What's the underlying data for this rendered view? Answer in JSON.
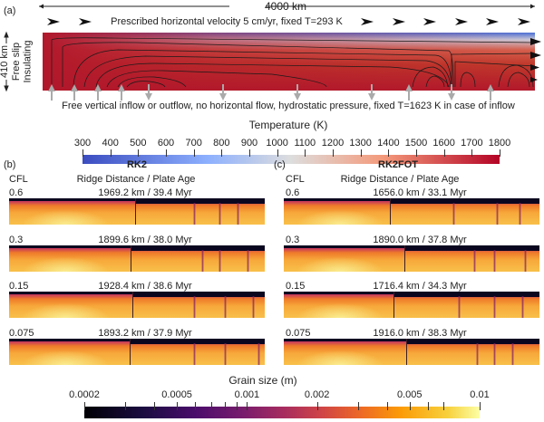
{
  "panel_a": {
    "label": "(a)",
    "width_label": "4000 km",
    "depth_label": "410 km",
    "side_labels": [
      "Free slip",
      "Insulating"
    ],
    "top_bc": "Prescribed horizontal velocity 5 cm/yr, fixed T=293 K",
    "bottom_bc": "Free vertical inflow or outflow, no horizontal flow, hydrostatic pressure, fixed T=1623 K in case of inflow"
  },
  "temperature_colorbar": {
    "title": "Temperature (K)",
    "ticks": [
      "300",
      "400",
      "500",
      "600",
      "700",
      "800",
      "900",
      "1000",
      "1100",
      "1200",
      "1300",
      "1400",
      "1500",
      "1600",
      "1700",
      "1800"
    ],
    "colors": [
      "#3b4cc0",
      "#dddddd",
      "#b40426"
    ]
  },
  "panel_b": {
    "label": "(b)",
    "title": "RK2",
    "col1": "CFL",
    "col2": "Ridge Distance / Plate Age",
    "rows": [
      {
        "cfl": "0.6",
        "value": "1969.2 km / 39.4 Myr",
        "ridge_km": 1969.2
      },
      {
        "cfl": "0.3",
        "value": "1899.6 km / 38.0 Myr",
        "ridge_km": 1899.6
      },
      {
        "cfl": "0.15",
        "value": "1928.4 km / 38.6 Myr",
        "ridge_km": 1928.4
      },
      {
        "cfl": "0.075",
        "value": "1893.2 km / 37.9 Myr",
        "ridge_km": 1893.2
      }
    ]
  },
  "panel_c": {
    "label": "(c)",
    "title": "RK2FOT",
    "col1": "CFL",
    "col2": "Ridge Distance / Plate Age",
    "rows": [
      {
        "cfl": "0.6",
        "value": "1656.0 km / 33.1 Myr",
        "ridge_km": 1656.0
      },
      {
        "cfl": "0.3",
        "value": "1890.0 km / 37.8 Myr",
        "ridge_km": 1890.0
      },
      {
        "cfl": "0.15",
        "value": "1716.4 km / 34.3 Myr",
        "ridge_km": 1716.4
      },
      {
        "cfl": "0.075",
        "value": "1916.0 km / 38.3 Myr",
        "ridge_km": 1916.0
      }
    ]
  },
  "grain_colorbar": {
    "title": "Grain size (m)",
    "labels": [
      "0.0002",
      "0.0005",
      "0.001",
      "0.002",
      "0.005",
      "0.01"
    ],
    "label_values": [
      0.0002,
      0.0005,
      0.001,
      0.002,
      0.005,
      0.01
    ],
    "minor_values": [
      0.0003,
      0.0004,
      0.0006,
      0.0007,
      0.0008,
      0.0009,
      0.003,
      0.004,
      0.006,
      0.007
    ],
    "range": [
      0.0002,
      0.01
    ]
  }
}
